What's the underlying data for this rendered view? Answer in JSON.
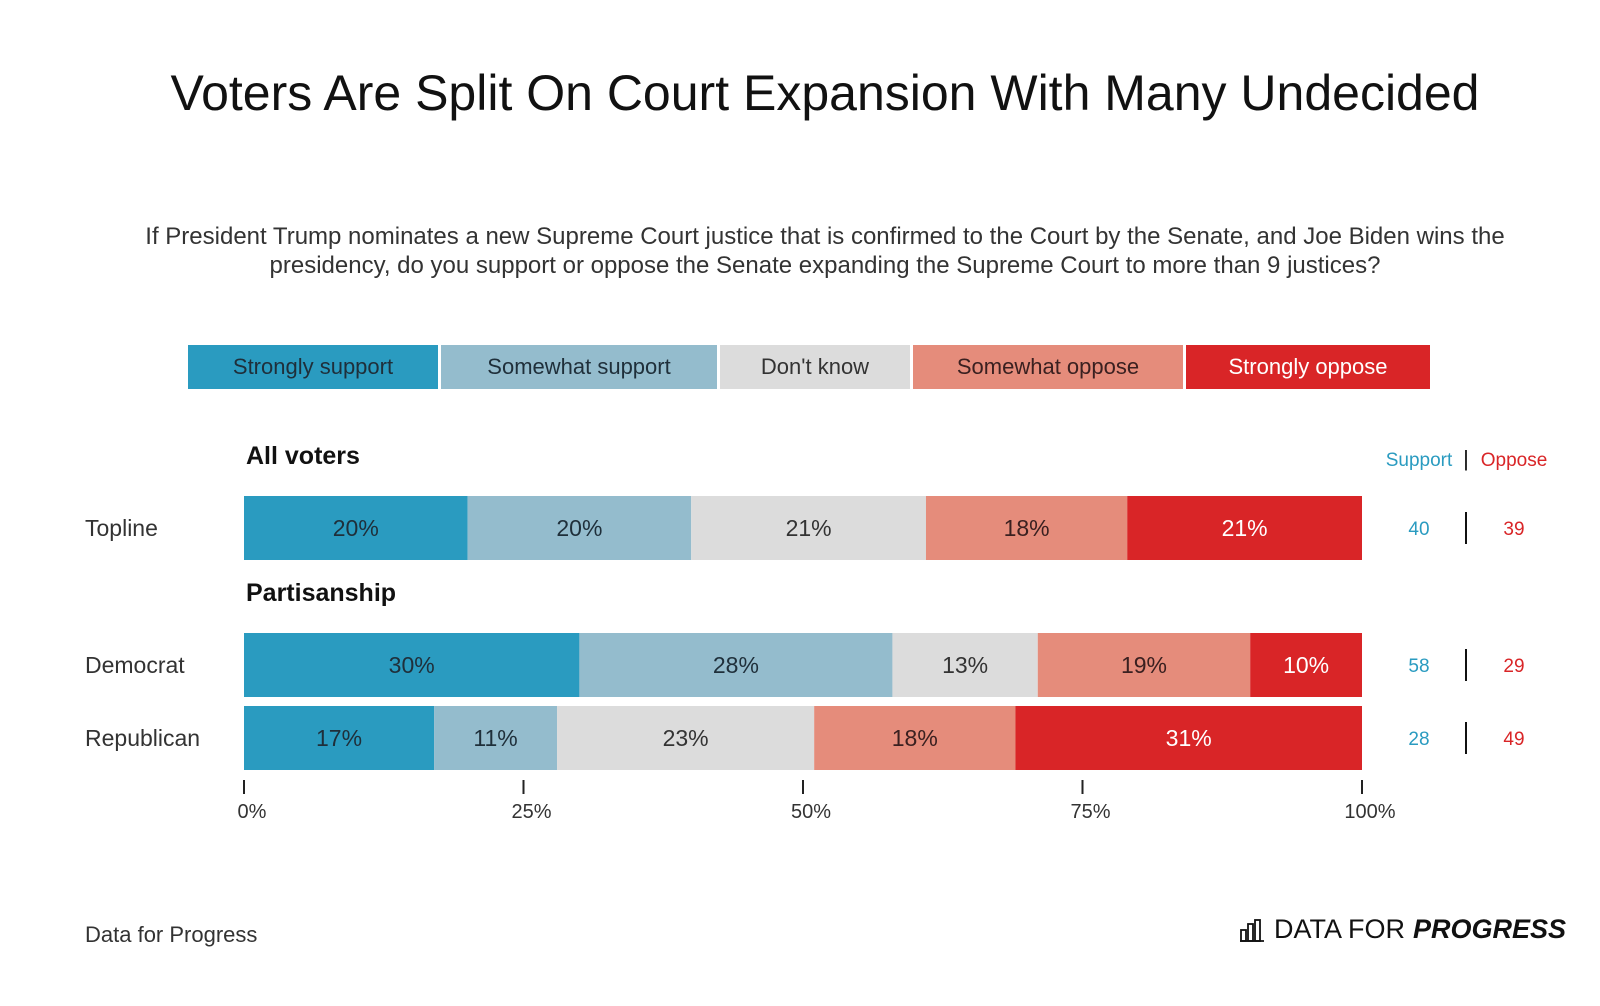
{
  "title": "Voters Are Split On Court Expansion With Many Undecided",
  "subtitle": "If President Trump nominates a new Supreme Court justice that is confirmed to the Court by the Senate, and Joe Biden wins the presidency, do you support or oppose the Senate expanding the Supreme Court to more than 9 justices?",
  "legend": [
    {
      "label": "Strongly support",
      "color": "#2a9bc0",
      "text_color": "#1f2f3a"
    },
    {
      "label": "Somewhat support",
      "color": "#94bccd",
      "text_color": "#1f2f3a"
    },
    {
      "label": "Don't know",
      "color": "#dcdcdc",
      "text_color": "#333333"
    },
    {
      "label": "Somewhat oppose",
      "color": "#e58c7b",
      "text_color": "#3a2020"
    },
    {
      "label": "Strongly oppose",
      "color": "#d92527",
      "text_color": "#ffffff"
    }
  ],
  "net_headers": {
    "support": "Support",
    "divider": "|",
    "oppose": "Oppose",
    "support_color": "#2a9bc0",
    "oppose_color": "#d92527"
  },
  "chart_data": {
    "type": "bar",
    "orientation": "horizontal",
    "stacked": true,
    "xlim": [
      0,
      100
    ],
    "x_ticks": [
      "0%",
      "25%",
      "50%",
      "75%",
      "100%"
    ],
    "groups": [
      {
        "name": "All voters",
        "rows": [
          {
            "label": "Topline",
            "values": [
              20,
              20,
              21,
              18,
              21
            ],
            "support": "40",
            "oppose": "39"
          }
        ]
      },
      {
        "name": "Partisanship",
        "rows": [
          {
            "label": "Democrat",
            "values": [
              30,
              28,
              13,
              19,
              10
            ],
            "support": "58",
            "oppose": "29"
          },
          {
            "label": "Republican",
            "values": [
              17,
              11,
              23,
              18,
              31
            ],
            "support": "28",
            "oppose": "49"
          }
        ]
      }
    ],
    "series": [
      "Strongly support",
      "Somewhat support",
      "Don't know",
      "Somewhat oppose",
      "Strongly oppose"
    ]
  },
  "footer": {
    "source": "Data for Progress",
    "brand_regular": "DATA FOR",
    "brand_bold": "PROGRESS",
    "brand_icon": "bar-chart-icon"
  }
}
